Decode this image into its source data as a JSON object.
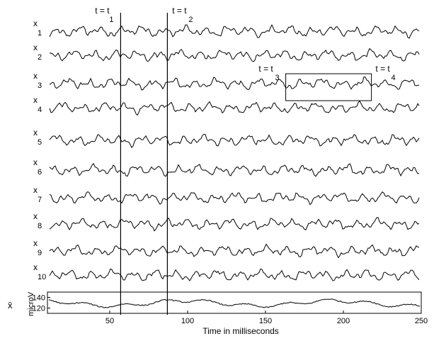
{
  "chart_data": {
    "type": "line",
    "xlabel": "Time in milliseconds",
    "xlim": [
      10,
      250
    ],
    "xticks": [
      50,
      100,
      150,
      200,
      250
    ],
    "channels": [
      {
        "label": "x",
        "sub": "1"
      },
      {
        "label": "x",
        "sub": "2"
      },
      {
        "label": "x",
        "sub": "3"
      },
      {
        "label": "x",
        "sub": "4"
      },
      {
        "label": "x",
        "sub": "5"
      },
      {
        "label": "x",
        "sub": "6"
      },
      {
        "label": "x",
        "sub": "7"
      },
      {
        "label": "x",
        "sub": "8"
      },
      {
        "label": "x",
        "sub": "9"
      },
      {
        "label": "x",
        "sub": "10"
      }
    ],
    "time_markers": [
      {
        "text": "t = t",
        "sub": "1",
        "x": 57
      },
      {
        "text": "t = t",
        "sub": "2",
        "x": 87
      }
    ],
    "window": {
      "x_start": 163,
      "x_end": 218,
      "left_label": {
        "text": "t = t",
        "sub": "3"
      },
      "right_label": {
        "text": "t = t",
        "sub": "4"
      }
    },
    "average_panel": {
      "label": "x̄",
      "ylabel": "microV",
      "ylim": [
        110,
        150
      ],
      "yticks": [
        120,
        140
      ]
    }
  }
}
